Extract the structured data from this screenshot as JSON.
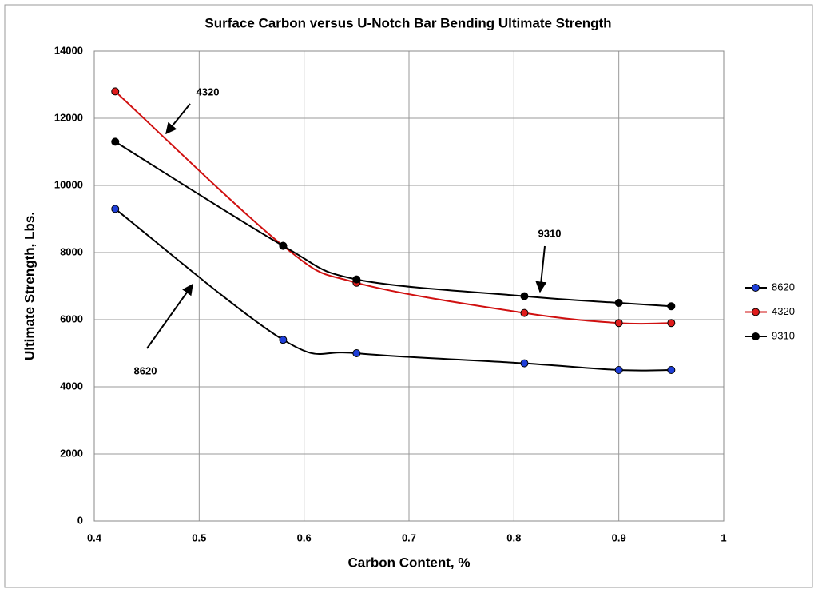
{
  "chart_data": {
    "type": "line",
    "title": "Surface Carbon versus U-Notch Bar Bending Ultimate Strength",
    "x_label": "Carbon Content, %",
    "y_label": "Ultimate Strength, Lbs.",
    "x": [
      0.42,
      0.58,
      0.65,
      0.81,
      0.9,
      0.95
    ],
    "series": [
      {
        "name": "8620",
        "color": "#1f3fd9",
        "line_color": "#000000",
        "values": [
          9300,
          5400,
          5000,
          4700,
          4500,
          4500
        ]
      },
      {
        "name": "4320",
        "color": "#e01b1b",
        "line_color": "#d01010",
        "values": [
          12800,
          8200,
          7100,
          6200,
          5900,
          5900
        ]
      },
      {
        "name": "9310",
        "color": "#000000",
        "line_color": "#000000",
        "values": [
          11300,
          8200,
          7200,
          6700,
          6500,
          6400
        ]
      }
    ],
    "xlim": [
      0.4,
      1
    ],
    "xticks": [
      0.4,
      0.5,
      0.6,
      0.7,
      0.8,
      0.9,
      1
    ],
    "ylim": [
      0,
      14000
    ],
    "yticks": [
      0,
      2000,
      4000,
      6000,
      8000,
      10000,
      12000,
      14000
    ],
    "grid": true,
    "smooth": true,
    "legend": "right",
    "annotations": [
      "4320",
      "9310",
      "8620"
    ]
  }
}
